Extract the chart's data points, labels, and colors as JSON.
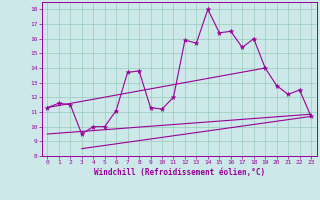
{
  "xlabel": "Windchill (Refroidissement éolien,°C)",
  "background_color": "#cce8e8",
  "grid_color": "#99ccbb",
  "line_color": "#990099",
  "xlim": [
    -0.5,
    23.5
  ],
  "ylim": [
    8,
    18.5
  ],
  "xticks": [
    0,
    1,
    2,
    3,
    4,
    5,
    6,
    7,
    8,
    9,
    10,
    11,
    12,
    13,
    14,
    15,
    16,
    17,
    18,
    19,
    20,
    21,
    22,
    23
  ],
  "yticks": [
    8,
    9,
    10,
    11,
    12,
    13,
    14,
    15,
    16,
    17,
    18
  ],
  "line1_x": [
    0,
    1,
    2,
    3,
    4,
    5,
    6,
    7,
    8,
    9,
    10,
    11,
    12,
    13,
    14,
    15,
    16,
    17,
    18,
    19,
    20,
    21,
    22,
    23
  ],
  "line1_y": [
    11.3,
    11.6,
    11.5,
    9.5,
    10.0,
    10.0,
    11.1,
    13.7,
    13.8,
    11.3,
    11.2,
    12.0,
    15.9,
    15.7,
    18.0,
    16.4,
    16.5,
    15.4,
    16.0,
    14.0,
    12.8,
    12.2,
    12.5,
    10.7
  ],
  "line2_x": [
    0,
    19
  ],
  "line2_y": [
    11.3,
    14.0
  ],
  "line3_x": [
    3,
    23
  ],
  "line3_y": [
    8.5,
    10.7
  ],
  "line4_x": [
    0,
    23
  ],
  "line4_y": [
    9.5,
    10.85
  ],
  "tick_fontsize": 4.5,
  "label_fontsize": 5.5
}
